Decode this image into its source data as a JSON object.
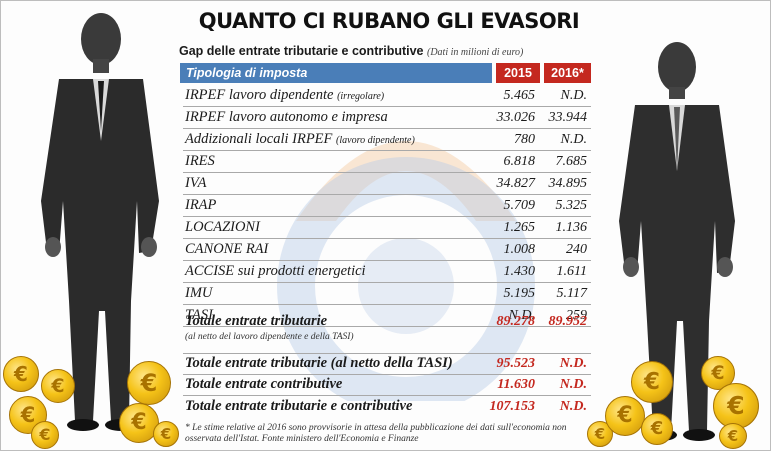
{
  "title": "QUANTO CI RUBANO GLI EVASORI",
  "subtitle": "Gap delle entrate tributarie e contributive",
  "subtitle_note": "(Dati in milioni di euro)",
  "table": {
    "header": {
      "label": "Tipologia di imposta",
      "year1": "2015",
      "year2": "2016*"
    },
    "rows": [
      {
        "label": "IRPEF lavoro dipendente",
        "note": "(irregolare)",
        "v2015": "5.465",
        "v2016": "N.D."
      },
      {
        "label": "IRPEF lavoro autonomo e impresa",
        "note": "",
        "v2015": "33.026",
        "v2016": "33.944"
      },
      {
        "label": "Addizionali locali IRPEF",
        "note": "(lavoro dipendente)",
        "v2015": "780",
        "v2016": "N.D."
      },
      {
        "label": "IRES",
        "note": "",
        "v2015": "6.818",
        "v2016": "7.685"
      },
      {
        "label": "IVA",
        "note": "",
        "v2015": "34.827",
        "v2016": "34.895"
      },
      {
        "label": "IRAP",
        "note": "",
        "v2015": "5.709",
        "v2016": "5.325"
      },
      {
        "label": "LOCAZIONI",
        "note": "",
        "v2015": "1.265",
        "v2016": "1.136"
      },
      {
        "label": "CANONE RAI",
        "note": "",
        "v2015": "1.008",
        "v2016": "240"
      },
      {
        "label": "ACCISE sui prodotti energetici",
        "note": "",
        "v2015": "1.430",
        "v2016": "1.611"
      },
      {
        "label": "IMU",
        "note": "",
        "v2015": "5.195",
        "v2016": "5.117"
      },
      {
        "label": "TASI",
        "note": "",
        "v2015": "N.D.",
        "v2016": "259"
      }
    ],
    "total_tributarie": {
      "label": "Totale entrate tributarie",
      "note": "(al netto del lavoro dipendente e della TASI)",
      "v2015": "89.278",
      "v2016": "89.952"
    },
    "totals": [
      {
        "label": "Totale entrate tributarie (al netto della TASI)",
        "v2015": "95.523",
        "v2016": "N.D."
      },
      {
        "label": "Totale entrate contributive",
        "v2015": "11.630",
        "v2016": "N.D."
      },
      {
        "label": "Totale entrate tributarie e contributive",
        "v2015": "107.153",
        "v2016": "N.D."
      }
    ]
  },
  "footnote": "* Le stime relative al 2016 sono provvisorie in attesa della pubblicazione dei dati sull'economia non osservata dell'Istat. Fonte ministero dell'Economia e Finanze",
  "coin_symbol": "€",
  "colors": {
    "header_blue": "#4a7eb8",
    "header_red": "#c4281f",
    "accent_red": "#c4281f",
    "coin_gold": "#f5c318"
  }
}
